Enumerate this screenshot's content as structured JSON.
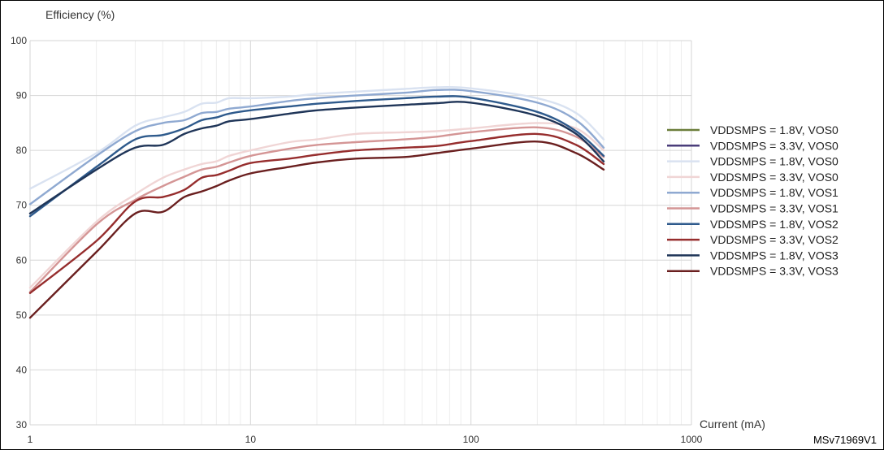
{
  "chart_data": {
    "type": "line",
    "title": "",
    "xlabel": "Current (mA)",
    "ylabel": "Efficiency (%)",
    "xscale": "log",
    "xlim": [
      1,
      1000
    ],
    "ylim": [
      30,
      100
    ],
    "xticks": [
      "1",
      "10",
      "100",
      "1000"
    ],
    "yticks": [
      "30",
      "40",
      "50",
      "60",
      "70",
      "80",
      "90",
      "100"
    ],
    "grid": true,
    "legend_position": "right",
    "figure_id": "MSv71969V1",
    "series": [
      {
        "name": "VDDSMPS = 1.8V, VOS0",
        "color": "#6b7d3a",
        "x": [],
        "y": []
      },
      {
        "name": "VDDSMPS = 3.3V, VOS0",
        "color": "#4a3d7a",
        "x": [],
        "y": []
      },
      {
        "name": "VDDSMPS = 1.8V, VOS0",
        "color": "#d9e2f1",
        "x": [
          1,
          2,
          3,
          4,
          5,
          6,
          7,
          8,
          10,
          15,
          20,
          30,
          50,
          70,
          100,
          200,
          300,
          400
        ],
        "y": [
          73,
          79.5,
          84.5,
          86,
          87,
          88.5,
          88.7,
          89.5,
          89.5,
          89.8,
          90.3,
          90.7,
          91.2,
          91.5,
          91.3,
          89.5,
          86.8,
          82
        ]
      },
      {
        "name": "VDDSMPS = 3.3V, VOS0",
        "color": "#f0d5d5",
        "x": [
          1,
          2,
          3,
          4,
          5,
          6,
          7,
          8,
          10,
          15,
          20,
          30,
          50,
          70,
          100,
          200,
          300,
          400
        ],
        "y": [
          55,
          67,
          72,
          75,
          76.5,
          77.5,
          78,
          79,
          80,
          81.5,
          82,
          83,
          83.3,
          83.5,
          84,
          85,
          84,
          80
        ]
      },
      {
        "name": "VDDSMPS = 1.8V, VOS1",
        "color": "#8fa9d1",
        "x": [
          1,
          2,
          3,
          4,
          5,
          6,
          7,
          8,
          10,
          15,
          20,
          30,
          50,
          70,
          100,
          200,
          300,
          400
        ],
        "y": [
          70.2,
          79,
          83.5,
          85,
          85.5,
          86.8,
          87,
          87.6,
          88,
          89,
          89.5,
          90,
          90.5,
          91,
          90.8,
          88.7,
          85.5,
          80.5
        ]
      },
      {
        "name": "VDDSMPS = 3.3V, VOS1",
        "color": "#d49595",
        "x": [
          1,
          2,
          3,
          4,
          5,
          6,
          7,
          8,
          10,
          15,
          20,
          30,
          50,
          70,
          100,
          200,
          300,
          400
        ],
        "y": [
          54.2,
          66.5,
          71,
          73.5,
          75.2,
          76.5,
          77,
          77.8,
          79,
          80.3,
          81,
          81.5,
          82,
          82.5,
          83.3,
          84.2,
          82.5,
          78.8
        ]
      },
      {
        "name": "VDDSMPS = 1.8V, VOS2",
        "color": "#2e5a8c",
        "x": [
          1,
          2,
          3,
          4,
          5,
          6,
          7,
          8,
          10,
          15,
          20,
          30,
          50,
          70,
          100,
          200,
          300,
          400
        ],
        "y": [
          68,
          77,
          82,
          82.8,
          84,
          85.5,
          86,
          86.7,
          87.3,
          88,
          88.5,
          89,
          89.5,
          89.8,
          89.6,
          87,
          83.5,
          79
        ]
      },
      {
        "name": "VDDSMPS = 3.3V, VOS2",
        "color": "#962d2d",
        "x": [
          1,
          2,
          3,
          4,
          5,
          6,
          7,
          8,
          10,
          15,
          20,
          30,
          50,
          70,
          100,
          200,
          300,
          400
        ],
        "y": [
          54,
          63.5,
          70.7,
          71.5,
          72.8,
          75,
          75.5,
          76.3,
          77.7,
          78.5,
          79.2,
          80,
          80.5,
          80.8,
          81.7,
          83,
          81,
          77.5
        ]
      },
      {
        "name": "VDDSMPS = 1.8V, VOS3",
        "color": "#1f3558",
        "x": [
          1,
          2,
          3,
          4,
          5,
          6,
          7,
          8,
          10,
          15,
          20,
          30,
          50,
          70,
          100,
          200,
          300,
          400
        ],
        "y": [
          68.5,
          76.5,
          80.5,
          81,
          83,
          84,
          84.5,
          85.3,
          85.7,
          86.7,
          87.3,
          87.8,
          88.3,
          88.6,
          88.7,
          86.3,
          83,
          78
        ]
      },
      {
        "name": "VDDSMPS = 3.3V, VOS3",
        "color": "#6a1f1f",
        "x": [
          1,
          2,
          3,
          4,
          5,
          6,
          7,
          8,
          10,
          15,
          20,
          30,
          50,
          70,
          100,
          200,
          300,
          400
        ],
        "y": [
          49.5,
          61.5,
          68.5,
          68.8,
          71.5,
          72.5,
          73.5,
          74.5,
          75.8,
          77,
          77.8,
          78.5,
          78.8,
          79.5,
          80.3,
          81.6,
          79.5,
          76.5
        ]
      }
    ]
  }
}
